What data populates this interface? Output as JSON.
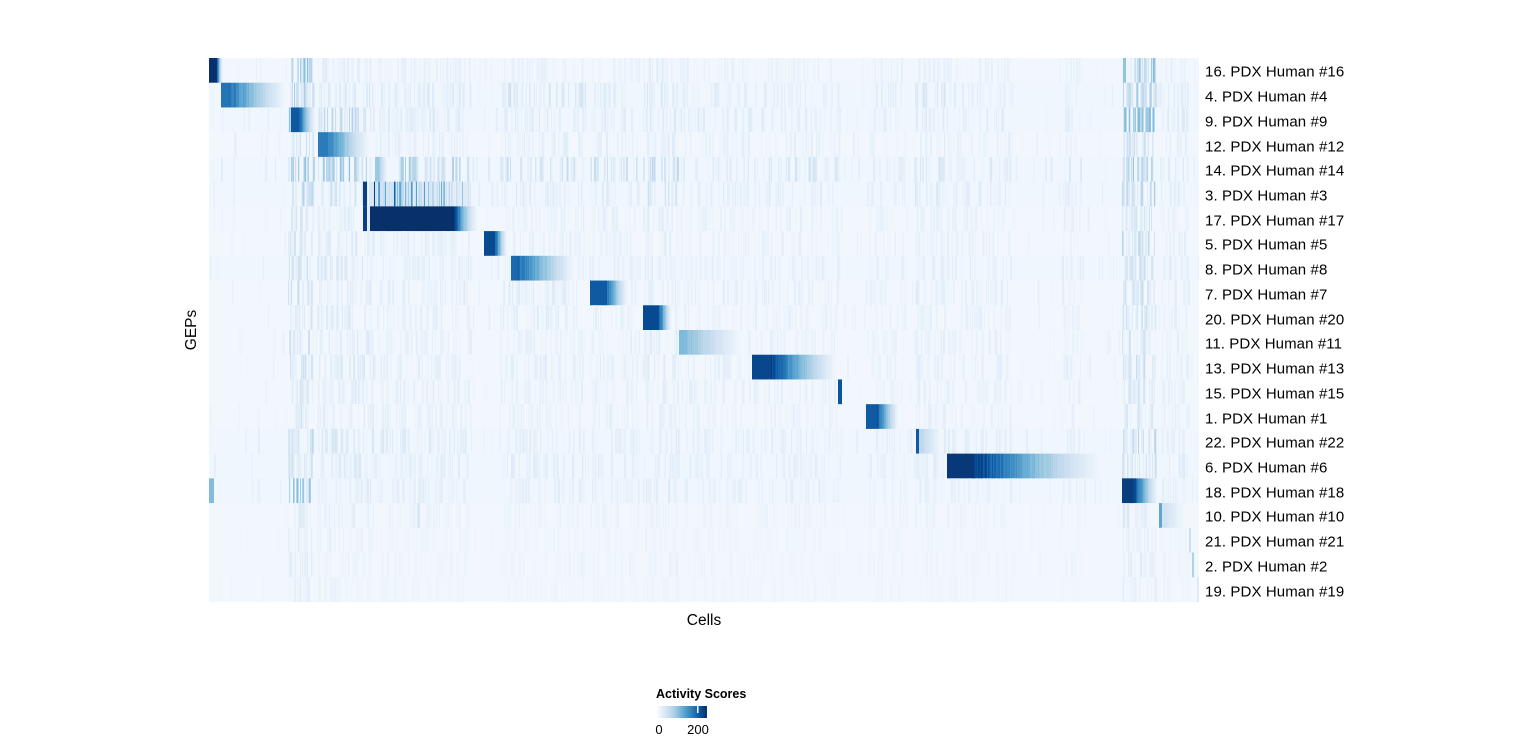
{
  "chart_data": {
    "type": "heatmap",
    "xlabel": "Cells",
    "ylabel": "GEPs",
    "legend": {
      "title": "Activity Scores",
      "tick_labels": [
        "0",
        "200"
      ],
      "tick_values": [
        0,
        200
      ],
      "bar_value_range": [
        0,
        250
      ]
    },
    "colormap_stops": [
      "#f7fbff",
      "#deebf7",
      "#c6dbef",
      "#9ecae1",
      "#6baed6",
      "#4292c6",
      "#2171b5",
      "#08519c",
      "#08306b"
    ],
    "value_units": "activity score (0 = white, 250 = dark navy)",
    "rows": [
      {
        "label": "16. PDX Human #16",
        "base": 8,
        "streak_scale": 1.0,
        "block": {
          "s": 0.0,
          "solid": 0.0071,
          "e": 0.0152,
          "peak": 252,
          "p": 2.0
        }
      },
      {
        "label": "4. PDX Human #4",
        "base": 9,
        "streak_scale": 1.5,
        "block": {
          "s": 0.0121,
          "solid": 0.0202,
          "e": 0.0818,
          "peak": 185,
          "p": 1.2
        }
      },
      {
        "label": "9. PDX Human #9",
        "base": 9,
        "streak_scale": 1.5,
        "block": {
          "s": 0.0828,
          "solid": 0.0899,
          "e": 0.1091,
          "peak": 212,
          "p": 1.4
        }
      },
      {
        "label": "12. PDX Human #12",
        "base": 8,
        "streak_scale": 1.2,
        "block": {
          "s": 0.1101,
          "solid": 0.1192,
          "e": 0.1657,
          "peak": 178,
          "p": 1.25
        }
      },
      {
        "label": "14. PDX Human #14",
        "base": 9,
        "streak_scale": 2.0,
        "block": {
          "s": 0.1677,
          "solid": 0.1707,
          "e": 0.181,
          "peak": 95,
          "p": 1.2
        }
      },
      {
        "label": "3. PDX Human #3",
        "base": 9,
        "streak_scale": 1.8,
        "edges": [
          {
            "s": 0.1556,
            "e": 0.1596,
            "v": 235
          }
        ],
        "streak_block": {
          "s": 0.166,
          "e": 0.264,
          "base_v": 55,
          "spike_v": 170,
          "spike_p": 0.5,
          "decay": 0.55
        }
      },
      {
        "label": "17. PDX Human #17",
        "base": 8,
        "streak_scale": 1.1,
        "edges": [
          {
            "s": 0.1556,
            "e": 0.1596,
            "v": 235
          }
        ],
        "block": {
          "s": 0.1626,
          "solid": 0.2465,
          "e": 0.2768,
          "peak": 250,
          "p": 2.0
        }
      },
      {
        "label": "5. PDX Human #5",
        "base": 8,
        "streak_scale": 1.1,
        "block": {
          "s": 0.2778,
          "solid": 0.2879,
          "e": 0.302,
          "peak": 225,
          "p": 1.5
        }
      },
      {
        "label": "8. PDX Human #8",
        "base": 9,
        "streak_scale": 1.3,
        "block": {
          "s": 0.3051,
          "solid": 0.3111,
          "e": 0.3727,
          "peak": 195,
          "p": 1.15
        }
      },
      {
        "label": "7. PDX Human #7",
        "base": 8,
        "streak_scale": 1.2,
        "block": {
          "s": 0.3848,
          "solid": 0.4,
          "e": 0.4253,
          "peak": 210,
          "p": 1.4
        }
      },
      {
        "label": "20. PDX Human #20",
        "base": 8,
        "streak_scale": 1.1,
        "block": {
          "s": 0.4384,
          "solid": 0.4535,
          "e": 0.4687,
          "peak": 225,
          "p": 1.5
        }
      },
      {
        "label": "11. PDX Human #11",
        "base": 8,
        "streak_scale": 1.1,
        "block": {
          "s": 0.4747,
          "solid": 0.4798,
          "e": 0.5434,
          "peak": 112,
          "p": 1.15
        }
      },
      {
        "label": "13. PDX Human #13",
        "base": 8,
        "streak_scale": 1.2,
        "block": {
          "s": 0.5485,
          "solid": 0.5667,
          "e": 0.6374,
          "peak": 228,
          "p": 1.2
        }
      },
      {
        "label": "15. PDX Human #15",
        "base": 8,
        "streak_scale": 1.0,
        "edges": [
          {
            "s": 0.6354,
            "e": 0.6394,
            "v": 215
          }
        ]
      },
      {
        "label": "1. PDX Human #1",
        "base": 8,
        "streak_scale": 1.0,
        "block": {
          "s": 0.6636,
          "solid": 0.6747,
          "e": 0.698,
          "peak": 210,
          "p": 1.3
        }
      },
      {
        "label": "22. PDX Human #22",
        "base": 9,
        "streak_scale": 1.4,
        "edges": [
          {
            "s": 0.7141,
            "e": 0.7172,
            "v": 210
          }
        ],
        "block": {
          "s": 0.7172,
          "solid": 0.7192,
          "e": 0.7424,
          "peak": 68,
          "p": 1.1
        }
      },
      {
        "label": "6. PDX Human #6",
        "base": 9,
        "streak_scale": 1.3,
        "block": {
          "s": 0.7454,
          "solid": 0.7727,
          "e": 0.9131,
          "peak": 242,
          "p": 1.35
        }
      },
      {
        "label": "18. PDX Human #18",
        "base": 9,
        "streak_scale": 1.2,
        "edges": [
          {
            "s": 0.0,
            "e": 0.0055,
            "v": 110
          }
        ],
        "block": {
          "s": 0.9222,
          "solid": 0.9333,
          "e": 0.9606,
          "peak": 238,
          "p": 1.4
        }
      },
      {
        "label": "10. PDX Human #10",
        "base": 8,
        "streak_scale": 0.7,
        "edges": [
          {
            "s": 0.9596,
            "e": 0.9626,
            "v": 135
          },
          {
            "s": 0.2101,
            "e": 0.2131,
            "v": 38
          }
        ],
        "block": {
          "s": 0.9626,
          "solid": 0.9657,
          "e": 0.9879,
          "peak": 48,
          "p": 1.0
        }
      },
      {
        "label": "21. PDX Human #21",
        "base": 7,
        "streak_scale": 0.55,
        "edges": [
          {
            "s": 0.9899,
            "e": 0.9919,
            "v": 55
          }
        ]
      },
      {
        "label": "2. PDX Human #2",
        "base": 7,
        "streak_scale": 0.6,
        "edges": [
          {
            "s": 0.9929,
            "e": 0.9949,
            "v": 80
          }
        ]
      },
      {
        "label": "19. PDX Human #19",
        "base": 7,
        "streak_scale": 0.45,
        "edges": [
          {
            "s": 0.998,
            "e": 1.0,
            "v": 32
          }
        ]
      }
    ],
    "streak_bands": [
      {
        "s": 0.0,
        "e": 1.0,
        "v": 7,
        "d": 0.055,
        "mult": {}
      },
      {
        "s": 0.0798,
        "e": 0.1051,
        "v": 24,
        "d": 0.5,
        "mult": {
          "0": 2.7,
          "2": 3.1,
          "17": 2.6,
          "1": 1.3,
          "4": 1.3,
          "20": 1.1
        }
      },
      {
        "s": 0.1091,
        "e": 0.1657,
        "v": 15,
        "d": 0.45,
        "mult": {
          "2": 1.8,
          "4": 2.4
        }
      },
      {
        "s": 0.1717,
        "e": 0.264,
        "v": 11,
        "d": 0.4,
        "mult": {
          "4": 2.4
        }
      },
      {
        "s": 0.294,
        "e": 0.38,
        "v": 10,
        "d": 0.35,
        "mult": {
          "1": 1.6,
          "4": 1.6,
          "9": 1.3,
          "10": 1.3,
          "16": 1.2
        }
      },
      {
        "s": 0.385,
        "e": 0.435,
        "v": 10,
        "d": 0.35,
        "mult": {
          "4": 1.4
        }
      },
      {
        "s": 0.4384,
        "e": 0.474,
        "v": 12,
        "d": 0.4,
        "mult": {
          "4": 1.6,
          "5": 1.4
        }
      },
      {
        "s": 0.476,
        "e": 0.546,
        "v": 9,
        "d": 0.3,
        "mult": {
          "13": 1.3
        }
      },
      {
        "s": 0.549,
        "e": 0.637,
        "v": 9,
        "d": 0.3,
        "mult": {
          "13": 1.4,
          "4": 1.3
        }
      },
      {
        "s": 0.663,
        "e": 0.703,
        "v": 8,
        "d": 0.3,
        "mult": {}
      },
      {
        "s": 0.713,
        "e": 0.743,
        "v": 11,
        "d": 0.4,
        "mult": {
          "1": 1.4
        }
      },
      {
        "s": 0.745,
        "e": 0.81,
        "v": 9,
        "d": 0.3,
        "mult": {
          "15": 1.4
        }
      },
      {
        "s": 0.861,
        "e": 0.881,
        "v": 9,
        "d": 0.35,
        "mult": {}
      },
      {
        "s": 0.9222,
        "e": 0.956,
        "v": 26,
        "d": 0.55,
        "mult": {
          "0": 2.6,
          "2": 2.9,
          "1": 1.3,
          "7": 1.3
        }
      },
      {
        "s": 0.961,
        "e": 0.989,
        "v": 11,
        "d": 0.35,
        "mult": {}
      }
    ]
  }
}
